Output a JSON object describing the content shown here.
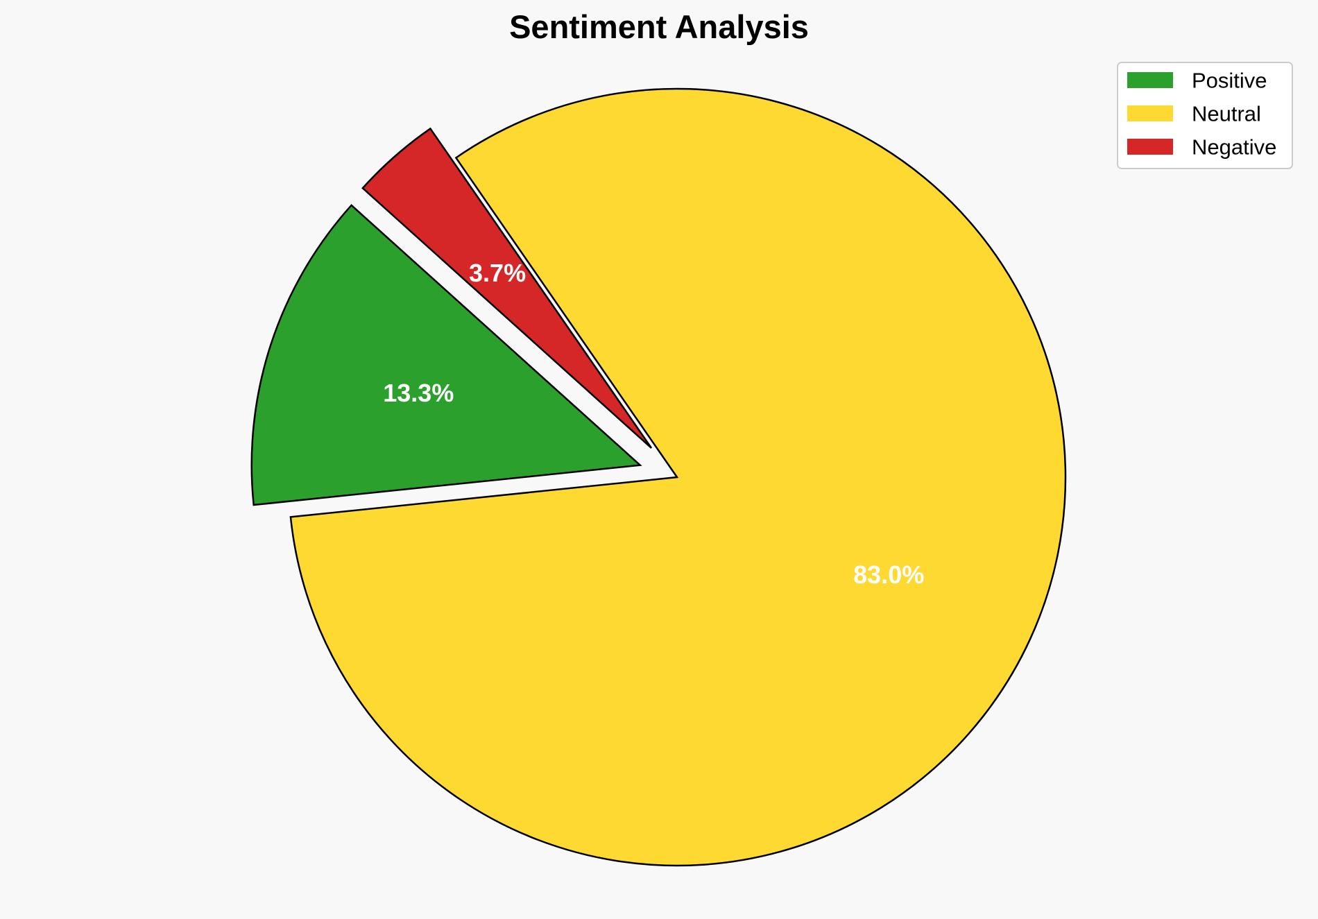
{
  "chart_data": {
    "type": "pie",
    "title": "Sentiment Analysis",
    "categories": [
      "Positive",
      "Neutral",
      "Negative"
    ],
    "values": [
      13.3,
      83.0,
      3.7
    ],
    "labels": [
      "13.3%",
      "83.0%",
      "3.7%"
    ],
    "colors": [
      "#2ca02c",
      "#fed931",
      "#d62728"
    ],
    "exploded": [
      true,
      false,
      true
    ],
    "start_angle_deg": 138,
    "direction": "counterclockwise",
    "legend_placement": "top-right"
  }
}
